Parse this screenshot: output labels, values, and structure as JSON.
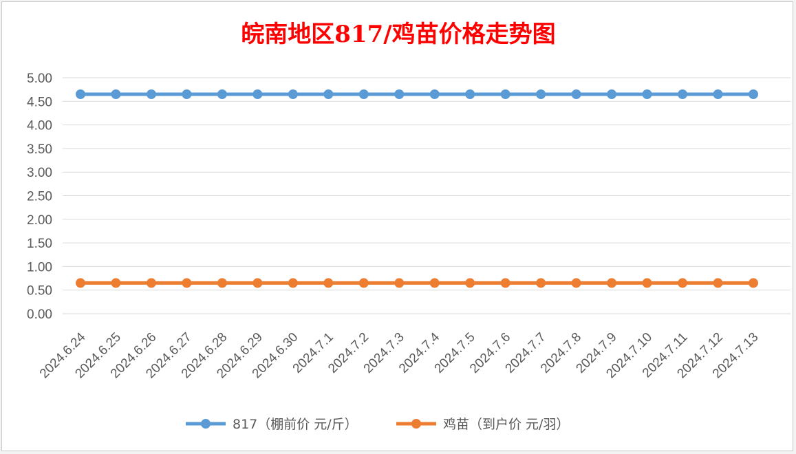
{
  "chart_data": {
    "type": "line",
    "title": "皖南地区817/鸡苗价格走势图",
    "xlabel": "",
    "ylabel": "",
    "x": [
      "2024.6.24",
      "2024.6.25",
      "2024.6.26",
      "2024.6.27",
      "2024.6.28",
      "2024.6.29",
      "2024.6.30",
      "2024.7.1",
      "2024.7.2",
      "2024.7.3",
      "2024.7.4",
      "2024.7.5",
      "2024.7.6",
      "2024.7.7",
      "2024.7.8",
      "2024.7.9",
      "2024.7.10",
      "2024.7.11",
      "2024.7.12",
      "2024.7.13"
    ],
    "ylim": [
      0,
      5
    ],
    "yticks": [
      "0.00",
      "0.50",
      "1.00",
      "1.50",
      "2.00",
      "2.50",
      "3.00",
      "3.50",
      "4.00",
      "4.50",
      "5.00"
    ],
    "grid": true,
    "legend_position": "bottom",
    "series": [
      {
        "name": "817（棚前价 元/斤）",
        "color": "#5b9bd5",
        "values": [
          4.65,
          4.65,
          4.65,
          4.65,
          4.65,
          4.65,
          4.65,
          4.65,
          4.65,
          4.65,
          4.65,
          4.65,
          4.65,
          4.65,
          4.65,
          4.65,
          4.65,
          4.65,
          4.65,
          4.65
        ]
      },
      {
        "name": "鸡苗（到户价 元/羽）",
        "color": "#ed7d31",
        "values": [
          0.65,
          0.65,
          0.65,
          0.65,
          0.65,
          0.65,
          0.65,
          0.65,
          0.65,
          0.65,
          0.65,
          0.65,
          0.65,
          0.65,
          0.65,
          0.65,
          0.65,
          0.65,
          0.65,
          0.65
        ]
      }
    ]
  }
}
